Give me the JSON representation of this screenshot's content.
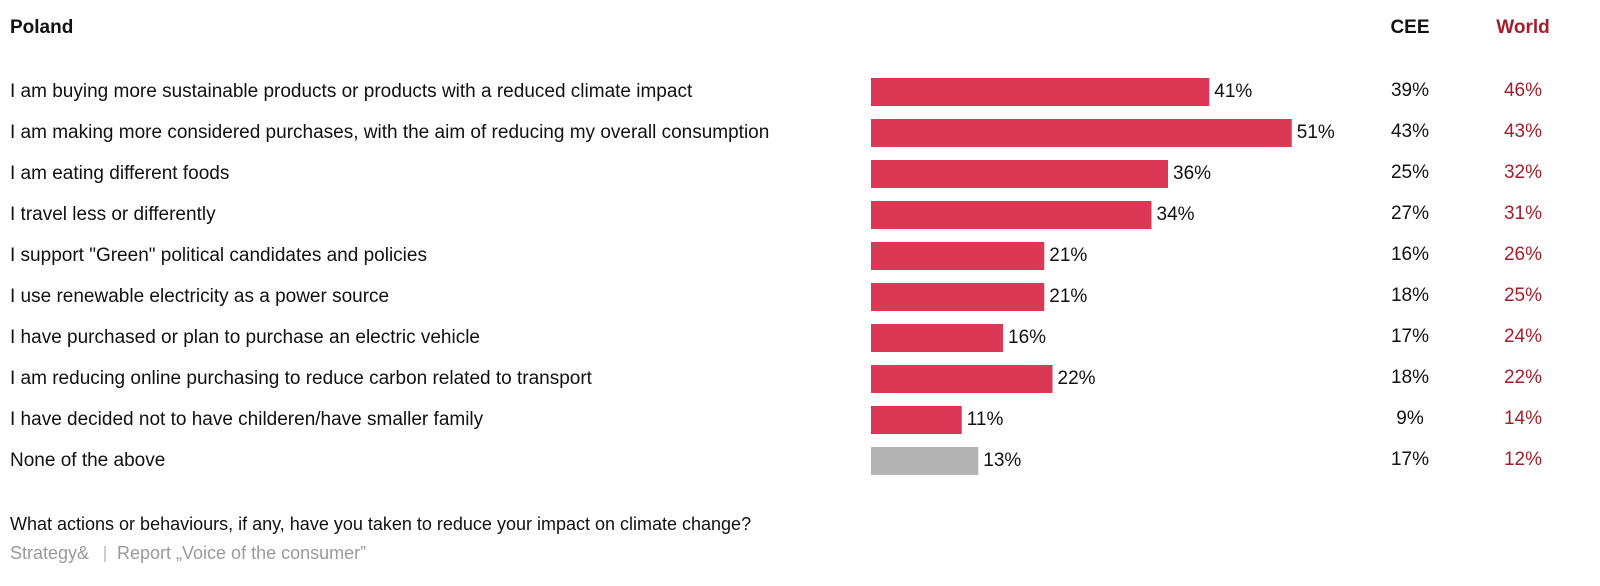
{
  "chart_data": {
    "type": "bar",
    "orientation": "horizontal",
    "categories": [
      "I am buying more sustainable products or products with a reduced climate impact",
      "I am making more considered purchases, with the aim of reducing my overall consumption",
      "I am eating different foods",
      "I travel less or differently",
      "I support \"Green\" political candidates and policies",
      "I use renewable electricity as a power source",
      "I have purchased or plan to purchase an electric vehicle",
      "I am reducing online purchasing to reduce carbon related to transport",
      "I have decided not to have childeren/have smaller family",
      "None of the above"
    ],
    "series": [
      {
        "name": "Poland",
        "display": "bar",
        "colors": [
          "#db3856",
          "#db3856",
          "#db3856",
          "#db3856",
          "#db3856",
          "#db3856",
          "#db3856",
          "#db3856",
          "#db3856",
          "#b3b3b3"
        ],
        "values": [
          41,
          51,
          36,
          34,
          21,
          21,
          16,
          22,
          11,
          13
        ],
        "value_labels": [
          "41%",
          "51%",
          "36%",
          "34%",
          "21%",
          "21%",
          "16%",
          "22%",
          "11%",
          "13%"
        ]
      },
      {
        "name": "CEE",
        "display": "text",
        "color": "#111111",
        "values": [
          39,
          43,
          25,
          27,
          16,
          18,
          17,
          18,
          9,
          17
        ],
        "value_labels": [
          "39%",
          "43%",
          "25%",
          "27%",
          "16%",
          "18%",
          "17%",
          "18%",
          "9%",
          "17%"
        ]
      },
      {
        "name": "World",
        "display": "text",
        "color": "#a31d2a",
        "values": [
          46,
          43,
          32,
          31,
          26,
          25,
          24,
          22,
          14,
          12
        ],
        "value_labels": [
          "46%",
          "43%",
          "32%",
          "31%",
          "26%",
          "25%",
          "24%",
          "22%",
          "14%",
          "12%"
        ]
      }
    ],
    "note": "What actions or behaviours, if any, have you taken to reduce your impact on climate change?",
    "source": [
      "Strategy&",
      "Report „Voice of the consumer”"
    ]
  }
}
